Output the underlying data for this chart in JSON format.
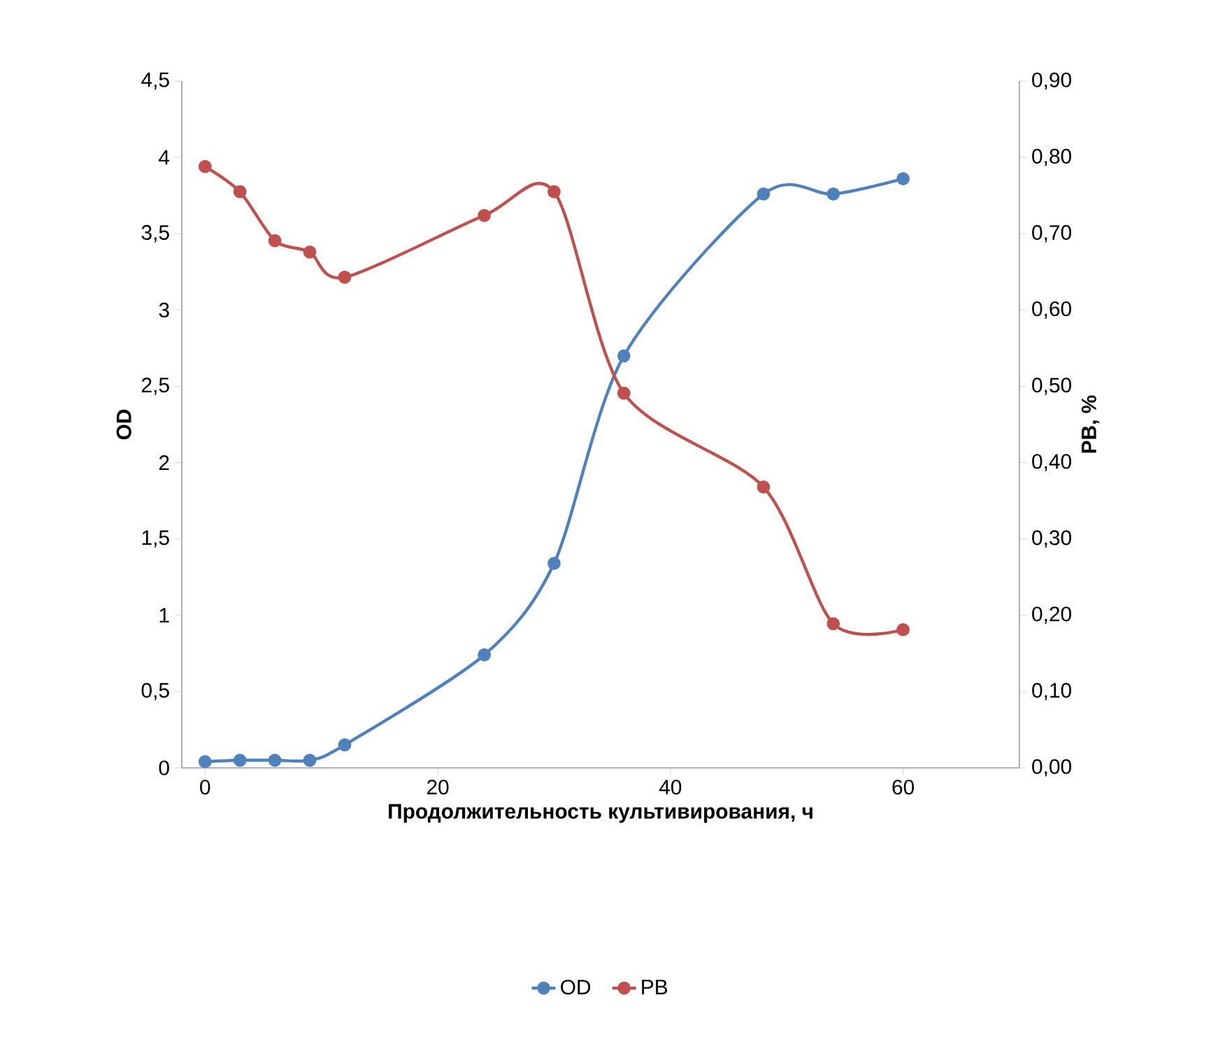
{
  "chart_data": {
    "type": "line",
    "xlabel": "Продолжительность культивирования, ч",
    "ylabel": "OD",
    "y2label": "PB, %",
    "x": [
      0,
      3,
      6,
      9,
      12,
      24,
      30,
      36,
      48,
      54,
      60
    ],
    "series": [
      {
        "name": "OD",
        "color": "#4f81bd",
        "values": [
          0.04,
          0.05,
          0.05,
          0.05,
          0.15,
          0.74,
          1.34,
          2.7,
          3.76,
          3.76,
          3.86
        ]
      },
      {
        "name": "PB",
        "color": "#c0504d",
        "axis": "y2",
        "values": [
          0.788,
          0.755,
          0.691,
          0.676,
          0.643,
          0.724,
          0.755,
          0.491,
          0.368,
          0.189,
          0.181
        ]
      }
    ],
    "xlim": [
      -2,
      70
    ],
    "xticks": [
      0,
      20,
      40,
      60
    ],
    "ylim": [
      0,
      4.5
    ],
    "yticks": [
      0,
      {
        "value": 0.5,
        "label": "0,5"
      },
      1,
      {
        "value": 1.5,
        "label": "1,5"
      },
      2,
      {
        "value": 2.5,
        "label": "2,5"
      },
      3,
      {
        "value": 3.5,
        "label": "3,5"
      },
      4,
      {
        "value": 4.5,
        "label": "4,5"
      }
    ],
    "y2lim": [
      0,
      0.9
    ],
    "y2ticks": [
      {
        "value": 0,
        "label": "0,00"
      },
      {
        "value": 0.1,
        "label": "0,10"
      },
      {
        "value": 0.2,
        "label": "0,20"
      },
      {
        "value": 0.3,
        "label": "0,30"
      },
      {
        "value": 0.4,
        "label": "0,40"
      },
      {
        "value": 0.5,
        "label": "0,50"
      },
      {
        "value": 0.6,
        "label": "0,60"
      },
      {
        "value": 0.7,
        "label": "0,70"
      },
      {
        "value": 0.8,
        "label": "0,80"
      },
      {
        "value": 0.9,
        "label": "0,90"
      }
    ],
    "legend": "bottom",
    "marker": "circle",
    "line_style": "solid"
  }
}
